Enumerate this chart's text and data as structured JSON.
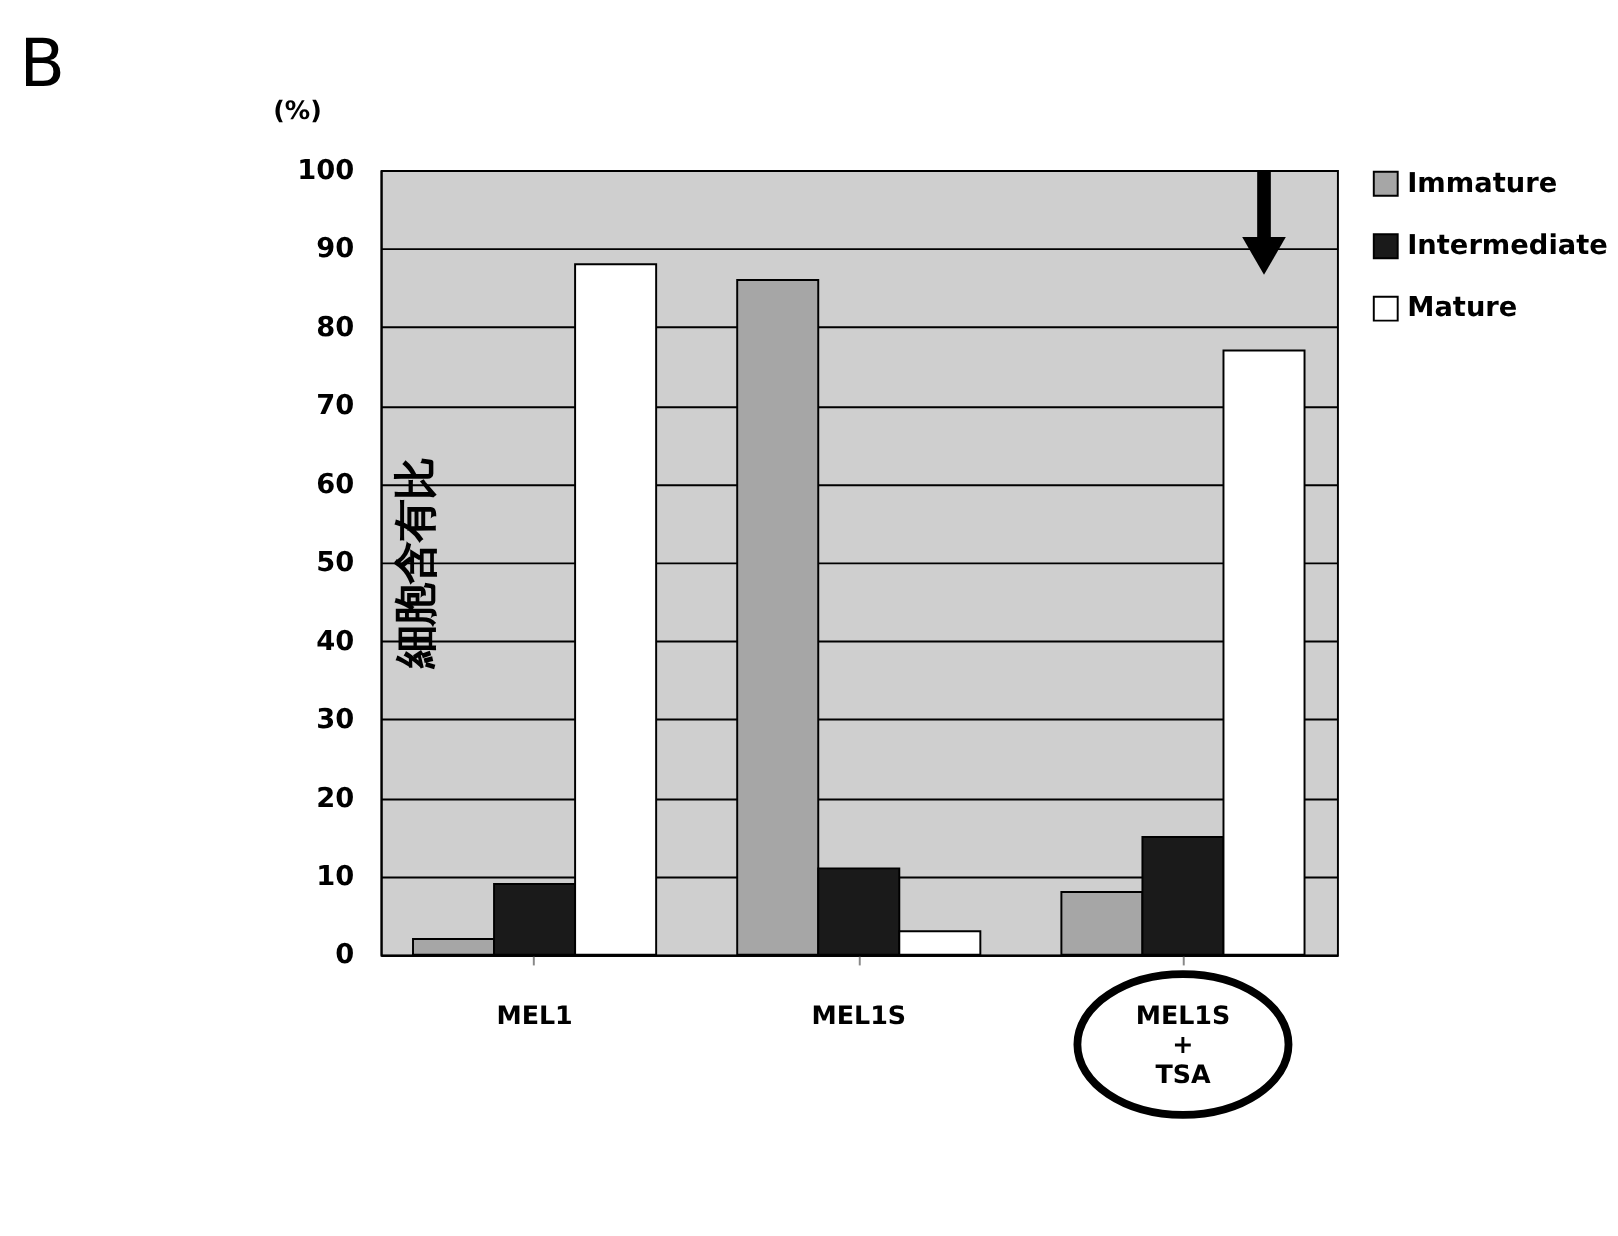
{
  "chart_data": {
    "type": "bar",
    "title": "B",
    "ylabel": "細胞含有比",
    "annotations": [
      "(%)"
    ],
    "categories": [
      "MEL1",
      "MEL1S",
      "MEL1S\n+\nTSA"
    ],
    "series": [
      {
        "name": "Immature",
        "color": "#a6a6a6",
        "values": [
          2,
          86,
          8
        ]
      },
      {
        "name": "Intermediate",
        "color": "#1a1a1a",
        "values": [
          9,
          11,
          15
        ]
      },
      {
        "name": "Mature",
        "color": "#ffffff",
        "values": [
          88,
          3,
          77
        ]
      }
    ],
    "ylim": [
      0,
      100
    ],
    "yticks": [
      0,
      10,
      20,
      30,
      40,
      50,
      60,
      70,
      80,
      90,
      100
    ],
    "grid": "y",
    "legend": "right"
  }
}
